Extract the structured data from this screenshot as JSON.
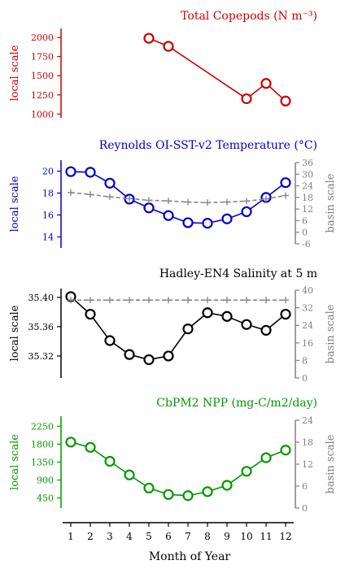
{
  "figure": {
    "xlabel": "Month of Year",
    "months": [
      "1",
      "2",
      "3",
      "4",
      "5",
      "6",
      "7",
      "8",
      "9",
      "10",
      "11",
      "12"
    ]
  },
  "chart_data": [
    {
      "type": "line",
      "title": "Total Copepods (N m⁻³)",
      "color": "#cc0000",
      "ylabel_left": "local scale",
      "ylim": [
        950,
        2150
      ],
      "yticks": [
        "2000",
        "1750",
        "1500",
        "1250",
        "1000"
      ],
      "ytick_values": [
        2000,
        1750,
        1500,
        1250,
        1000
      ],
      "x": [
        5,
        6,
        10,
        11,
        12
      ],
      "series": [
        {
          "values": [
            1990,
            1885,
            1200,
            1400,
            1170
          ]
        }
      ]
    },
    {
      "type": "line",
      "title": "Reynolds OI-SST-v2 Temperature (°C)",
      "color": "#0000cc",
      "ylabel_left": "local scale",
      "ylabel_right": "basin scale",
      "ylim": [
        13.0,
        21.0
      ],
      "yticks": [
        "20",
        "18",
        "16",
        "14"
      ],
      "ytick_values": [
        20,
        18,
        16,
        14
      ],
      "ylim_right": [
        -6,
        36
      ],
      "yticks_right": [
        "36",
        "30",
        "24",
        "18",
        "12",
        "6",
        "0",
        "-6"
      ],
      "ytick_values_right": [
        36,
        30,
        24,
        18,
        12,
        6,
        0,
        -6
      ],
      "x": [
        1,
        2,
        3,
        4,
        5,
        6,
        7,
        8,
        9,
        10,
        11,
        12
      ],
      "series": [
        {
          "axis": "local",
          "values": [
            19.95,
            19.9,
            18.9,
            17.45,
            16.65,
            15.95,
            15.3,
            15.25,
            15.65,
            16.3,
            17.6,
            18.95
          ]
        },
        {
          "axis": "basin",
          "values": [
            20.5,
            19.5,
            18.3,
            17.4,
            16.5,
            16.2,
            15.6,
            15.3,
            15.6,
            16.1,
            17.2,
            19.0
          ]
        }
      ]
    },
    {
      "type": "line",
      "title": "Hadley-EN4 Salinity at 5 m",
      "color": "#000000",
      "ylabel_left": "local scale",
      "ylabel_right": "basin scale",
      "ylim": [
        35.29,
        35.412
      ],
      "yticks": [
        "35.40",
        "35.36",
        "35.32"
      ],
      "ytick_values": [
        35.4,
        35.36,
        35.32
      ],
      "ylim_right": [
        0,
        40
      ],
      "yticks_right": [
        "40",
        "32",
        "24",
        "16",
        "8",
        "0"
      ],
      "ytick_values_right": [
        40,
        32,
        24,
        16,
        8,
        0
      ],
      "x": [
        1,
        2,
        3,
        4,
        5,
        6,
        7,
        8,
        9,
        10,
        11,
        12
      ],
      "series": [
        {
          "axis": "local",
          "values": [
            35.401,
            35.377,
            35.341,
            35.322,
            35.315,
            35.32,
            35.357,
            35.379,
            35.374,
            35.363,
            35.355,
            35.377
          ]
        },
        {
          "axis": "basin",
          "values": [
            35.5,
            35.5,
            35.5,
            35.5,
            35.5,
            35.5,
            35.5,
            35.5,
            35.5,
            35.5,
            35.5,
            35.5
          ]
        }
      ]
    },
    {
      "type": "line",
      "title": "CbPM2 NPP (mg-C/m2/day)",
      "color": "#009900",
      "ylabel_left": "local scale",
      "ylabel_right": "basin scale",
      "ylim": [
        200,
        2500
      ],
      "yticks": [
        "2250",
        "1800",
        "1350",
        "900",
        "450"
      ],
      "ytick_values": [
        2250,
        1800,
        1350,
        900,
        450
      ],
      "ylim_right": [
        0,
        24
      ],
      "yticks_right": [
        "24",
        "18",
        "12",
        "6",
        "0"
      ],
      "ytick_values_right": [
        24,
        18,
        12,
        6,
        0
      ],
      "x": [
        1,
        2,
        3,
        4,
        5,
        6,
        7,
        8,
        9,
        10,
        11,
        12
      ],
      "series": [
        {
          "axis": "local",
          "values": [
            1850,
            1720,
            1370,
            1030,
            700,
            540,
            510,
            610,
            770,
            1120,
            1460,
            1650
          ]
        }
      ]
    }
  ]
}
